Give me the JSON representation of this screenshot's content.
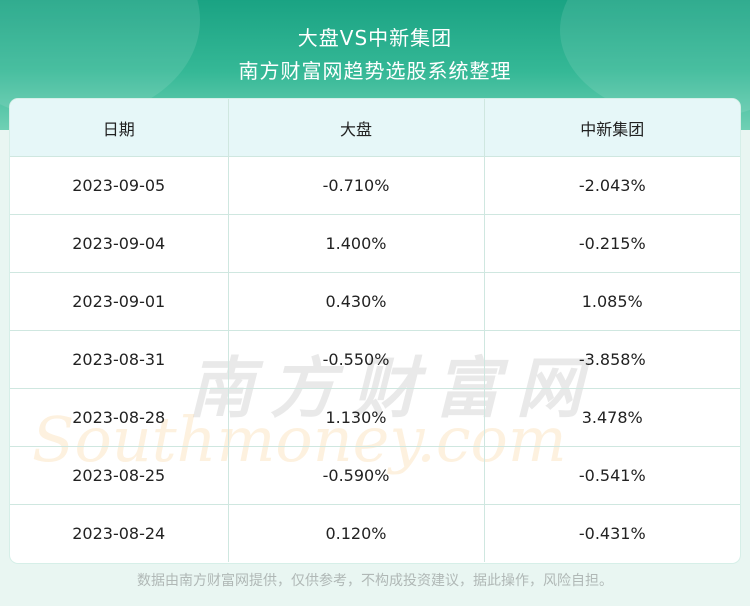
{
  "header": {
    "title": "大盘VS中新集团",
    "subtitle": "南方财富网趋势选股系统整理"
  },
  "table": {
    "columns": [
      "日期",
      "大盘",
      "中新集团"
    ],
    "rows": [
      [
        "2023-09-05",
        "-0.710%",
        "-2.043%"
      ],
      [
        "2023-09-04",
        "1.400%",
        "-0.215%"
      ],
      [
        "2023-09-01",
        "0.430%",
        "1.085%"
      ],
      [
        "2023-08-31",
        "-0.550%",
        "-3.858%"
      ],
      [
        "2023-08-28",
        "1.130%",
        "3.478%"
      ],
      [
        "2023-08-25",
        "-0.590%",
        "-0.541%"
      ],
      [
        "2023-08-24",
        "0.120%",
        "-0.431%"
      ]
    ]
  },
  "watermark": {
    "cn": "南方财富网",
    "en": "Southmoney.com"
  },
  "footer": {
    "disclaimer": "数据由南方财富网提供，仅供参考，不构成投资建议，据此操作，风险自担。"
  },
  "colors": {
    "banner": "#1aa383",
    "header_row": "#e6f7f8",
    "border": "#cfe7e0"
  }
}
